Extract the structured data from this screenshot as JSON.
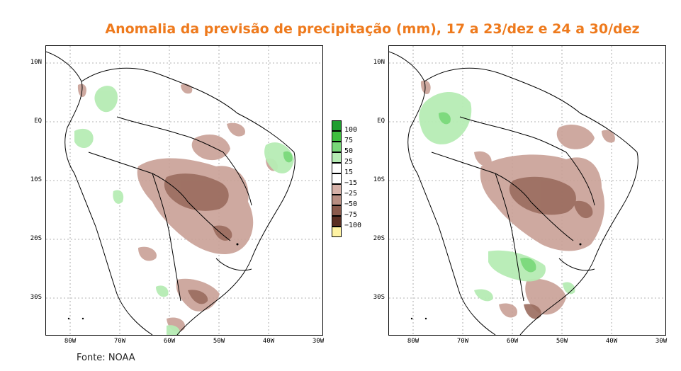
{
  "title": "Anomalia da previsão de precipitação (mm), 17 a 23/dez e 24 a 30/dez",
  "source": "Fonte: NOAA",
  "axes": {
    "lat_ticks": [
      "10N",
      "EQ",
      "10S",
      "20S",
      "30S"
    ],
    "lon_ticks": [
      "80W",
      "70W",
      "60W",
      "50W",
      "40W",
      "30W"
    ]
  },
  "legend": {
    "entries": [
      {
        "label": "100",
        "color": "#1f9e2f"
      },
      {
        "label": "75",
        "color": "#3fbf3f"
      },
      {
        "label": "50",
        "color": "#78d778"
      },
      {
        "label": "25",
        "color": "#b6ecb4"
      },
      {
        "label": "15",
        "color": "#ffffff"
      },
      {
        "label": "−15",
        "color": "#ffffff"
      },
      {
        "label": "−25",
        "color": "#d6b1a8"
      },
      {
        "label": "−50",
        "color": "#b88e82"
      },
      {
        "label": "−75",
        "color": "#8a5a4c"
      },
      {
        "label": "−100",
        "color": "#5a2e22"
      },
      {
        "label": "",
        "color": "#fff3a3"
      }
    ]
  },
  "maps": [
    {
      "period": "17 a 23/dez"
    },
    {
      "period": "24 a 30/dez"
    }
  ]
}
